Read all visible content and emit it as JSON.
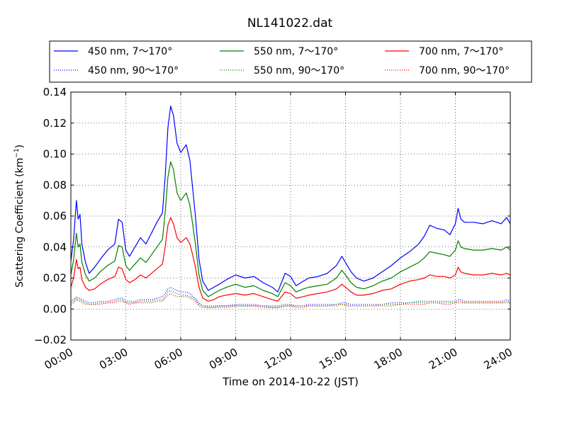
{
  "chart_data": {
    "type": "line",
    "title": "NL141022.dat",
    "xlabel": "Time on 2014-10-22 (JST)",
    "ylabel": "Scattering Coefficient (km",
    "ylabel_superscript": "−1",
    "ylabel_close": ")",
    "xlim": [
      0,
      24
    ],
    "ylim": [
      -0.02,
      0.14
    ],
    "x_ticks": [
      0,
      3,
      6,
      9,
      12,
      15,
      18,
      21,
      24
    ],
    "x_tick_labels": [
      "00:00",
      "03:00",
      "06:00",
      "09:00",
      "12:00",
      "15:00",
      "18:00",
      "21:00",
      "24:00"
    ],
    "y_ticks": [
      -0.02,
      0,
      0.02,
      0.04,
      0.06,
      0.08,
      0.1,
      0.12,
      0.14
    ],
    "y_tick_labels": [
      "−0.02",
      "0.00",
      "0.02",
      "0.04",
      "0.06",
      "0.08",
      "0.10",
      "0.12",
      "0.14"
    ],
    "grid": true,
    "legend_position": "top",
    "x_unit": "hours",
    "x": [
      0,
      0.15,
      0.3,
      0.4,
      0.5,
      0.6,
      0.8,
      1.0,
      1.3,
      1.6,
      2.0,
      2.4,
      2.6,
      2.8,
      3.0,
      3.2,
      3.5,
      3.8,
      4.1,
      4.4,
      4.7,
      5.0,
      5.15,
      5.3,
      5.45,
      5.6,
      5.8,
      6.0,
      6.3,
      6.5,
      6.65,
      6.8,
      7.0,
      7.2,
      7.5,
      7.8,
      8.1,
      8.5,
      9.0,
      9.5,
      10.0,
      10.5,
      11.0,
      11.3,
      11.7,
      12.0,
      12.3,
      12.7,
      13.0,
      13.5,
      14.0,
      14.5,
      14.8,
      15.0,
      15.3,
      15.6,
      16.0,
      16.5,
      17.0,
      17.5,
      18.0,
      18.5,
      19.0,
      19.3,
      19.6,
      20.0,
      20.4,
      20.7,
      21.0,
      21.15,
      21.3,
      21.5,
      22.0,
      22.5,
      23.0,
      23.5,
      23.8,
      24.0
    ],
    "series": [
      {
        "name": "450 nm, 7～170°",
        "color": "#0000ff",
        "style": "solid",
        "values": [
          0.031,
          0.045,
          0.07,
          0.058,
          0.061,
          0.042,
          0.03,
          0.023,
          0.027,
          0.032,
          0.038,
          0.042,
          0.058,
          0.056,
          0.038,
          0.034,
          0.04,
          0.046,
          0.042,
          0.049,
          0.056,
          0.062,
          0.085,
          0.117,
          0.131,
          0.125,
          0.107,
          0.101,
          0.106,
          0.096,
          0.078,
          0.06,
          0.032,
          0.018,
          0.012,
          0.014,
          0.016,
          0.019,
          0.022,
          0.02,
          0.021,
          0.017,
          0.014,
          0.011,
          0.023,
          0.021,
          0.015,
          0.018,
          0.02,
          0.021,
          0.023,
          0.028,
          0.034,
          0.03,
          0.024,
          0.02,
          0.018,
          0.02,
          0.024,
          0.028,
          0.033,
          0.037,
          0.042,
          0.047,
          0.054,
          0.052,
          0.051,
          0.048,
          0.055,
          0.065,
          0.058,
          0.056,
          0.056,
          0.055,
          0.057,
          0.055,
          0.059,
          0.055
        ]
      },
      {
        "name": "550 nm, 7～170°",
        "color": "#008000",
        "style": "solid",
        "values": [
          0.022,
          0.032,
          0.049,
          0.04,
          0.042,
          0.03,
          0.022,
          0.018,
          0.02,
          0.024,
          0.028,
          0.031,
          0.041,
          0.04,
          0.028,
          0.025,
          0.029,
          0.033,
          0.03,
          0.035,
          0.04,
          0.045,
          0.062,
          0.085,
          0.095,
          0.09,
          0.075,
          0.07,
          0.075,
          0.067,
          0.055,
          0.042,
          0.022,
          0.012,
          0.008,
          0.01,
          0.012,
          0.014,
          0.016,
          0.014,
          0.015,
          0.012,
          0.01,
          0.008,
          0.017,
          0.015,
          0.011,
          0.013,
          0.014,
          0.015,
          0.016,
          0.02,
          0.025,
          0.022,
          0.017,
          0.014,
          0.013,
          0.015,
          0.018,
          0.02,
          0.024,
          0.027,
          0.03,
          0.033,
          0.037,
          0.036,
          0.035,
          0.034,
          0.038,
          0.044,
          0.04,
          0.039,
          0.038,
          0.038,
          0.039,
          0.038,
          0.04,
          0.038
        ]
      },
      {
        "name": "700 nm, 7～170°",
        "color": "#ff0000",
        "style": "solid",
        "values": [
          0.014,
          0.02,
          0.032,
          0.026,
          0.027,
          0.019,
          0.014,
          0.012,
          0.013,
          0.016,
          0.019,
          0.021,
          0.027,
          0.026,
          0.019,
          0.017,
          0.019,
          0.022,
          0.02,
          0.023,
          0.026,
          0.029,
          0.04,
          0.054,
          0.059,
          0.055,
          0.046,
          0.043,
          0.046,
          0.042,
          0.035,
          0.027,
          0.014,
          0.007,
          0.005,
          0.006,
          0.008,
          0.009,
          0.01,
          0.009,
          0.01,
          0.008,
          0.006,
          0.005,
          0.011,
          0.01,
          0.007,
          0.008,
          0.009,
          0.01,
          0.011,
          0.013,
          0.016,
          0.014,
          0.011,
          0.009,
          0.009,
          0.01,
          0.012,
          0.013,
          0.016,
          0.018,
          0.019,
          0.02,
          0.022,
          0.021,
          0.021,
          0.02,
          0.022,
          0.027,
          0.024,
          0.023,
          0.022,
          0.022,
          0.023,
          0.022,
          0.023,
          0.022
        ]
      },
      {
        "name": "450 nm, 90～170°",
        "color": "#0000ff",
        "style": "dotted",
        "values": [
          0.005,
          0.006,
          0.008,
          0.007,
          0.007,
          0.006,
          0.005,
          0.004,
          0.004,
          0.005,
          0.005,
          0.006,
          0.007,
          0.007,
          0.005,
          0.005,
          0.005,
          0.006,
          0.006,
          0.006,
          0.007,
          0.008,
          0.01,
          0.013,
          0.014,
          0.013,
          0.012,
          0.011,
          0.011,
          0.01,
          0.008,
          0.007,
          0.004,
          0.002,
          0.002,
          0.002,
          0.002,
          0.002,
          0.003,
          0.003,
          0.003,
          0.002,
          0.002,
          0.002,
          0.003,
          0.003,
          0.002,
          0.002,
          0.003,
          0.003,
          0.003,
          0.003,
          0.004,
          0.004,
          0.003,
          0.003,
          0.003,
          0.003,
          0.003,
          0.004,
          0.004,
          0.004,
          0.005,
          0.005,
          0.005,
          0.005,
          0.005,
          0.005,
          0.005,
          0.006,
          0.006,
          0.005,
          0.005,
          0.005,
          0.005,
          0.005,
          0.006,
          0.005
        ]
      },
      {
        "name": "550 nm, 90～170°",
        "color": "#008000",
        "style": "dotted",
        "values": [
          0.004,
          0.005,
          0.007,
          0.006,
          0.006,
          0.005,
          0.004,
          0.003,
          0.003,
          0.004,
          0.004,
          0.005,
          0.006,
          0.006,
          0.004,
          0.004,
          0.004,
          0.005,
          0.005,
          0.005,
          0.006,
          0.006,
          0.008,
          0.011,
          0.012,
          0.011,
          0.01,
          0.009,
          0.009,
          0.008,
          0.007,
          0.006,
          0.003,
          0.002,
          0.001,
          0.001,
          0.002,
          0.002,
          0.002,
          0.002,
          0.002,
          0.002,
          0.001,
          0.001,
          0.002,
          0.002,
          0.002,
          0.002,
          0.002,
          0.002,
          0.002,
          0.003,
          0.003,
          0.003,
          0.002,
          0.002,
          0.002,
          0.002,
          0.003,
          0.003,
          0.003,
          0.004,
          0.004,
          0.004,
          0.004,
          0.004,
          0.004,
          0.004,
          0.004,
          0.005,
          0.005,
          0.004,
          0.004,
          0.004,
          0.004,
          0.004,
          0.005,
          0.004
        ]
      },
      {
        "name": "700 nm, 90～170°",
        "color": "#ff0000",
        "style": "dotted",
        "values": [
          0.003,
          0.004,
          0.006,
          0.005,
          0.005,
          0.004,
          0.003,
          0.003,
          0.003,
          0.003,
          0.004,
          0.004,
          0.005,
          0.005,
          0.004,
          0.003,
          0.004,
          0.004,
          0.004,
          0.004,
          0.005,
          0.005,
          0.007,
          0.009,
          0.01,
          0.009,
          0.008,
          0.008,
          0.008,
          0.007,
          0.006,
          0.005,
          0.002,
          0.001,
          0.001,
          0.001,
          0.001,
          0.001,
          0.002,
          0.002,
          0.002,
          0.001,
          0.001,
          0.001,
          0.002,
          0.002,
          0.001,
          0.001,
          0.002,
          0.002,
          0.002,
          0.002,
          0.003,
          0.002,
          0.002,
          0.002,
          0.002,
          0.002,
          0.002,
          0.002,
          0.003,
          0.003,
          0.003,
          0.003,
          0.004,
          0.004,
          0.003,
          0.003,
          0.004,
          0.004,
          0.004,
          0.004,
          0.004,
          0.004,
          0.004,
          0.004,
          0.004,
          0.004
        ]
      }
    ]
  }
}
